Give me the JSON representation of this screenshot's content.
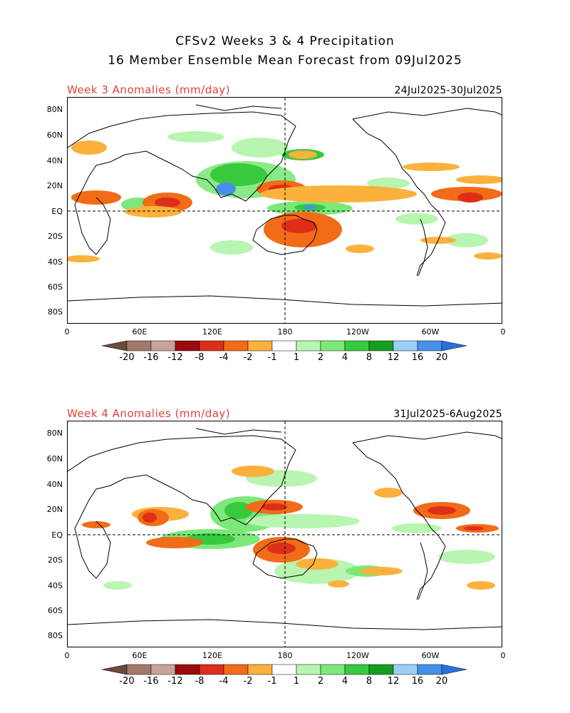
{
  "header": {
    "title_line1": "CFSv2 Weeks 3 & 4 Precipitation",
    "title_line2": "16 Member Ensemble Mean Forecast from 09Jul2025"
  },
  "panels": [
    {
      "label": "Week 3 Anomalies (mm/day)",
      "date_range": "24Jul2025-30Jul2025"
    },
    {
      "label": "Week 4 Anomalies (mm/day)",
      "date_range": "31Jul2025-6Aug2025"
    }
  ],
  "lat_labels": [
    "80N",
    "60N",
    "40N",
    "20N",
    "EQ",
    "20S",
    "40S",
    "60S",
    "80S"
  ],
  "lon_labels": [
    "0",
    "60E",
    "120E",
    "180",
    "120W",
    "60W",
    "0"
  ],
  "colorbar": {
    "labels": [
      "-20",
      "-16",
      "-12",
      "-8",
      "-4",
      "-2",
      "-1",
      "1",
      "2",
      "4",
      "8",
      "12",
      "16",
      "20"
    ],
    "colors": [
      "#6b4a3a",
      "#a37868",
      "#c9a39a",
      "#9c0c0c",
      "#dd2e1a",
      "#f26b16",
      "#fbb13c",
      "#ffffff",
      "#b8f5b0",
      "#7de87a",
      "#38c93f",
      "#149e1e",
      "#9ccff5",
      "#4690eb",
      "#2a6fe0"
    ]
  }
}
